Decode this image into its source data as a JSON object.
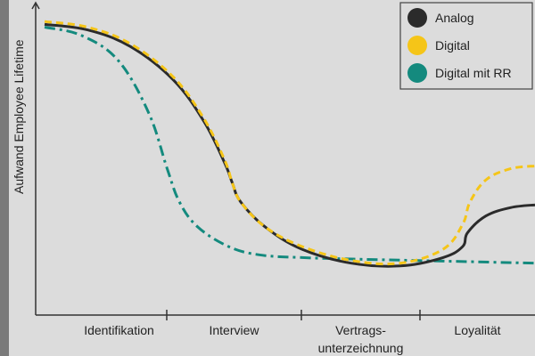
{
  "chart_data": {
    "type": "line",
    "ylabel": "Aufwand Employee Lifetime",
    "xlabel": "",
    "categories": [
      {
        "line1": "Identifikation",
        "line2": ""
      },
      {
        "line1": "Interview",
        "line2": ""
      },
      {
        "line1": "Vertrags-",
        "line2": "unterzeichnung"
      },
      {
        "line1": "Loyalität",
        "line2": ""
      }
    ],
    "x_unit": "phase index (0 = start of Identifikation, 4 = end of Loyalität)",
    "y_unit": "relative effort, 0 = axis, 100 = top",
    "ylim": [
      0,
      100
    ],
    "xlim": [
      0,
      4
    ],
    "grid": false,
    "legend_position": "top-right",
    "series": [
      {
        "name": "Analog",
        "color": "#2b2b2b",
        "dash": "solid",
        "x": [
          0.0,
          0.35,
          0.7,
          1.05,
          1.3,
          1.47,
          1.53,
          1.6,
          1.8,
          2.1,
          2.5,
          2.9,
          3.25,
          3.41,
          3.45,
          3.6,
          3.8,
          4.0
        ],
        "y": [
          97,
          95,
          89,
          77,
          62,
          47,
          40,
          33,
          24,
          16,
          11,
          10,
          13,
          17,
          22,
          28,
          31,
          32
        ]
      },
      {
        "name": "Digital",
        "color": "#f5c518",
        "dash": "dashed",
        "x": [
          0.0,
          0.35,
          0.7,
          1.05,
          1.3,
          1.47,
          1.53,
          1.6,
          1.8,
          2.1,
          2.5,
          2.9,
          3.25,
          3.41,
          3.47,
          3.6,
          3.8,
          4.0
        ],
        "y": [
          98,
          96,
          90,
          78,
          63,
          48,
          40,
          33,
          24,
          17,
          12,
          11,
          16,
          25,
          33,
          41,
          45,
          46
        ]
      },
      {
        "name": "Digital mit RR",
        "color": "#148a7e",
        "dash": "dashdot",
        "x": [
          0.0,
          0.3,
          0.6,
          0.85,
          1.0,
          1.1,
          1.25,
          1.5,
          1.75,
          2.1,
          2.5,
          3.0,
          3.5,
          4.0
        ],
        "y": [
          96,
          93,
          84,
          65,
          45,
          33,
          24,
          17,
          14,
          13,
          12.5,
          12,
          11.5,
          11
        ]
      }
    ]
  }
}
